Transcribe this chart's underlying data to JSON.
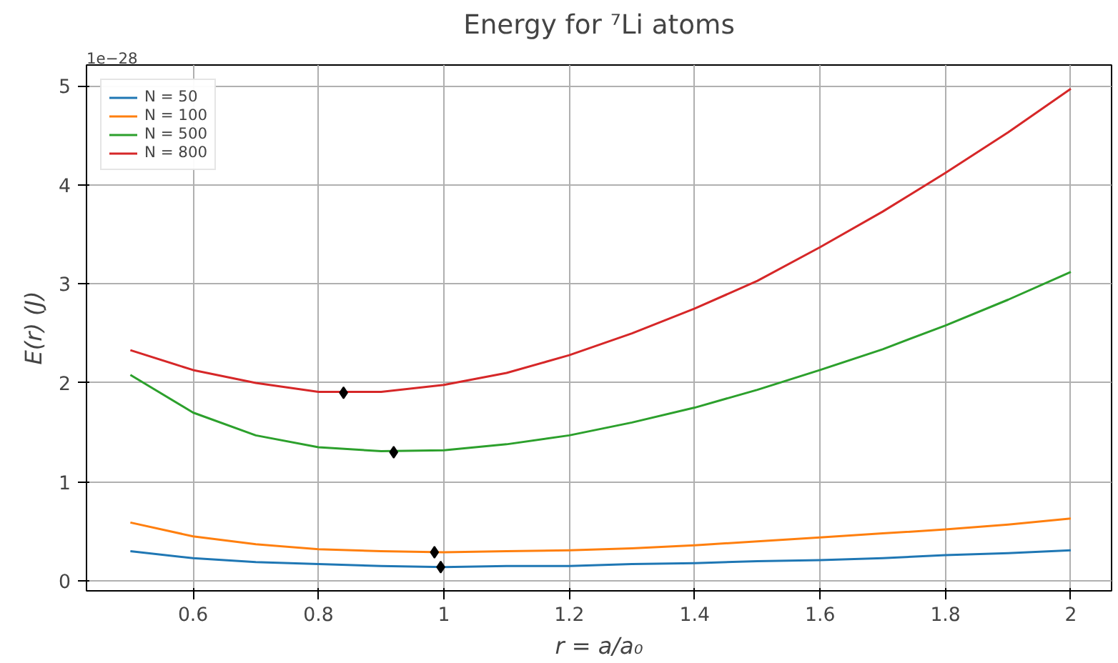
{
  "chart_data": {
    "type": "line",
    "title": "Energy for ⁷Li atoms",
    "xlabel": "r = a/a₀",
    "ylabel": "E(r) (J)",
    "annotations": [
      "1e−28"
    ],
    "x": [
      0.5,
      0.6,
      0.7,
      0.8,
      0.9,
      1.0,
      1.1,
      1.2,
      1.3,
      1.4,
      1.5,
      1.6,
      1.7,
      1.8,
      1.9,
      2.0
    ],
    "series": [
      {
        "name": "N = 50",
        "color": "#1f77b4",
        "values": [
          0.3,
          0.23,
          0.19,
          0.17,
          0.15,
          0.14,
          0.15,
          0.15,
          0.17,
          0.18,
          0.2,
          0.21,
          0.23,
          0.26,
          0.28,
          0.31
        ]
      },
      {
        "name": "N = 100",
        "color": "#ff7f0e",
        "values": [
          0.59,
          0.45,
          0.37,
          0.32,
          0.3,
          0.29,
          0.3,
          0.31,
          0.33,
          0.36,
          0.4,
          0.44,
          0.48,
          0.52,
          0.57,
          0.63
        ]
      },
      {
        "name": "N = 500",
        "color": "#2ca02c",
        "values": [
          2.08,
          1.7,
          1.47,
          1.35,
          1.31,
          1.32,
          1.38,
          1.47,
          1.6,
          1.75,
          1.93,
          2.13,
          2.34,
          2.58,
          2.84,
          3.12
        ]
      },
      {
        "name": "N = 800",
        "color": "#d62728",
        "values": [
          2.33,
          2.13,
          2.0,
          1.91,
          1.91,
          1.98,
          2.1,
          2.28,
          2.5,
          2.75,
          3.03,
          3.37,
          3.73,
          4.12,
          4.53,
          4.97
        ]
      },
      {
        "type": "scatter",
        "marker": "diamond",
        "color": "#000000",
        "x": [
          0.84,
          0.92,
          0.985,
          0.995
        ],
        "values": [
          1.9,
          1.3,
          0.29,
          0.14
        ]
      }
    ],
    "xlim": [
      0.43,
      2.065
    ],
    "ylim": [
      -0.1,
      5.21
    ],
    "xticks": [
      0.6,
      0.8,
      1.0,
      1.2,
      1.4,
      1.6,
      1.8,
      2.0
    ],
    "yticks": [
      0,
      1,
      2,
      3,
      4,
      5
    ],
    "grid": true,
    "legend": "top left",
    "marker": "none",
    "line_style": "solid"
  }
}
